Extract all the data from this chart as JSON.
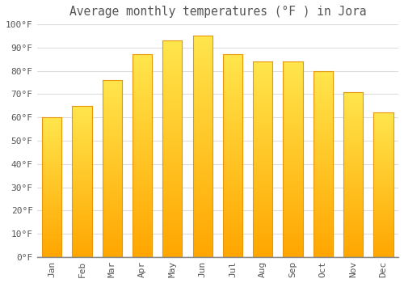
{
  "title": "Average monthly temperatures (°F ) in Jora",
  "months": [
    "Jan",
    "Feb",
    "Mar",
    "Apr",
    "May",
    "Jun",
    "Jul",
    "Aug",
    "Sep",
    "Oct",
    "Nov",
    "Dec"
  ],
  "values": [
    60,
    65,
    76,
    87,
    93,
    95,
    87,
    84,
    84,
    80,
    71,
    62
  ],
  "bar_color_top": "#FFD966",
  "bar_color_bottom": "#FFA500",
  "bar_edge_color": "#E8960A",
  "background_color": "#FFFFFF",
  "grid_color": "#DDDDDD",
  "text_color": "#555555",
  "ylim": [
    0,
    100
  ],
  "yticks": [
    0,
    10,
    20,
    30,
    40,
    50,
    60,
    70,
    80,
    90,
    100
  ],
  "title_fontsize": 10.5,
  "tick_fontsize": 8,
  "font_family": "monospace",
  "bar_width": 0.65
}
